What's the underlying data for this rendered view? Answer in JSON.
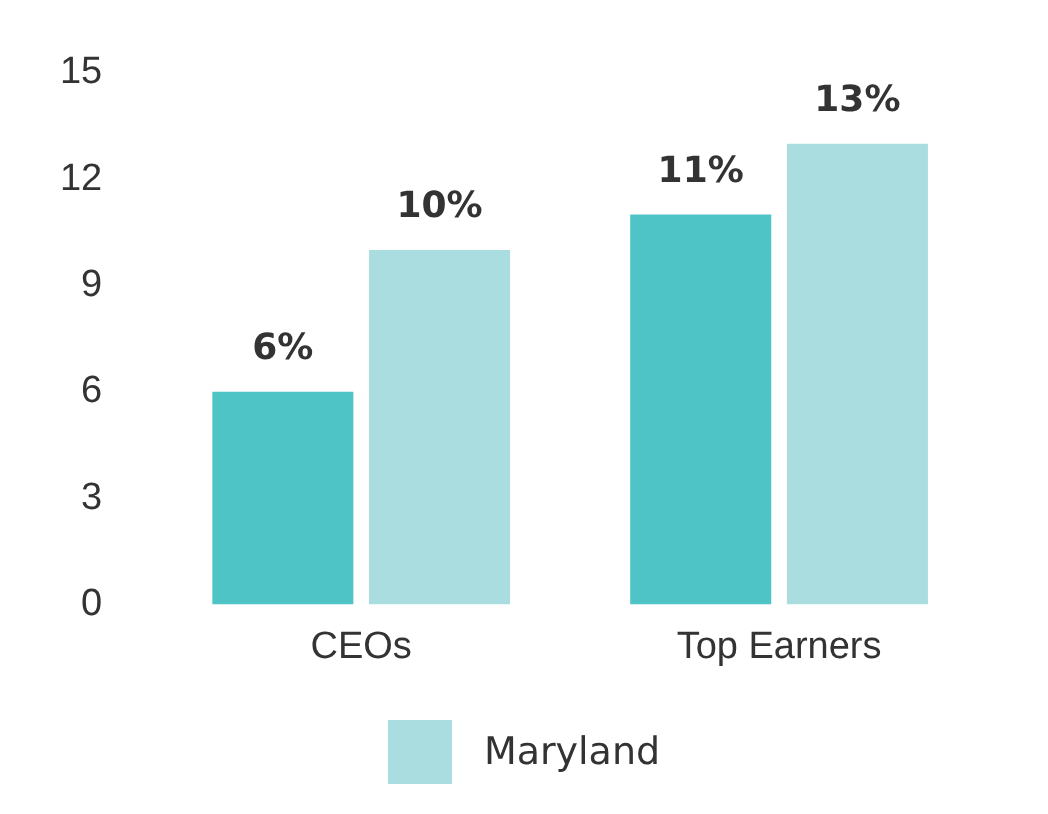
{
  "chart_data": {
    "type": "bar",
    "categories": [
      "CEOs",
      "Top Earners"
    ],
    "series": [
      {
        "color": "#4fc4c6",
        "values": [
          6,
          11
        ],
        "value_labels": [
          "6%",
          "11%"
        ]
      },
      {
        "name": "Maryland",
        "color": "#a9dde0",
        "values": [
          10,
          13
        ],
        "value_labels": [
          "10%",
          "13%"
        ]
      }
    ],
    "ylim": [
      0,
      15
    ],
    "yticks": [
      0,
      3,
      6,
      9,
      12,
      15
    ],
    "grid": false,
    "legend": "bottom"
  }
}
